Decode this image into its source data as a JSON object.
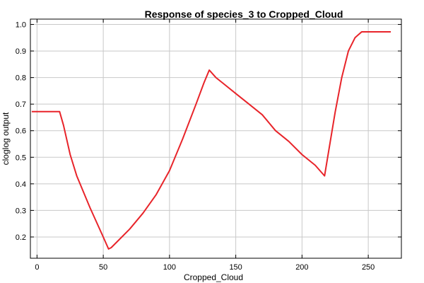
{
  "chart_data": {
    "type": "line",
    "title": "Response of species_3 to Cropped_Cloud",
    "xlabel": "Cropped_Cloud",
    "ylabel": "cloglog output",
    "xlim": [
      -5,
      275
    ],
    "ylim": [
      0.12,
      1.02
    ],
    "xticks": [
      0,
      50,
      100,
      150,
      200,
      250
    ],
    "yticks": [
      0.2,
      0.3,
      0.4,
      0.5,
      0.6,
      0.7,
      0.8,
      0.9,
      1.0
    ],
    "xtick_labels": [
      "0",
      "50",
      "100",
      "150",
      "200",
      "250"
    ],
    "ytick_labels": [
      "0.2",
      "0.3",
      "0.4",
      "0.5",
      "0.6",
      "0.7",
      "0.8",
      "0.9",
      "1.0"
    ],
    "grid": true,
    "color": "#e8242a",
    "series": [
      {
        "x": [
          -4,
          17,
          20,
          25,
          30,
          40,
          50,
          54,
          56,
          60,
          70,
          80,
          90,
          100,
          110,
          120,
          126,
          130,
          135,
          140,
          150,
          160,
          170,
          180,
          190,
          200,
          210,
          217,
          220,
          225,
          230,
          235,
          240,
          245,
          255,
          267
        ],
        "y": [
          0.672,
          0.672,
          0.62,
          0.51,
          0.43,
          0.31,
          0.2,
          0.155,
          0.16,
          0.18,
          0.23,
          0.29,
          0.36,
          0.45,
          0.57,
          0.7,
          0.78,
          0.828,
          0.8,
          0.78,
          0.74,
          0.7,
          0.66,
          0.6,
          0.56,
          0.51,
          0.47,
          0.43,
          0.52,
          0.67,
          0.8,
          0.9,
          0.95,
          0.972,
          0.972,
          0.972
        ]
      }
    ]
  }
}
